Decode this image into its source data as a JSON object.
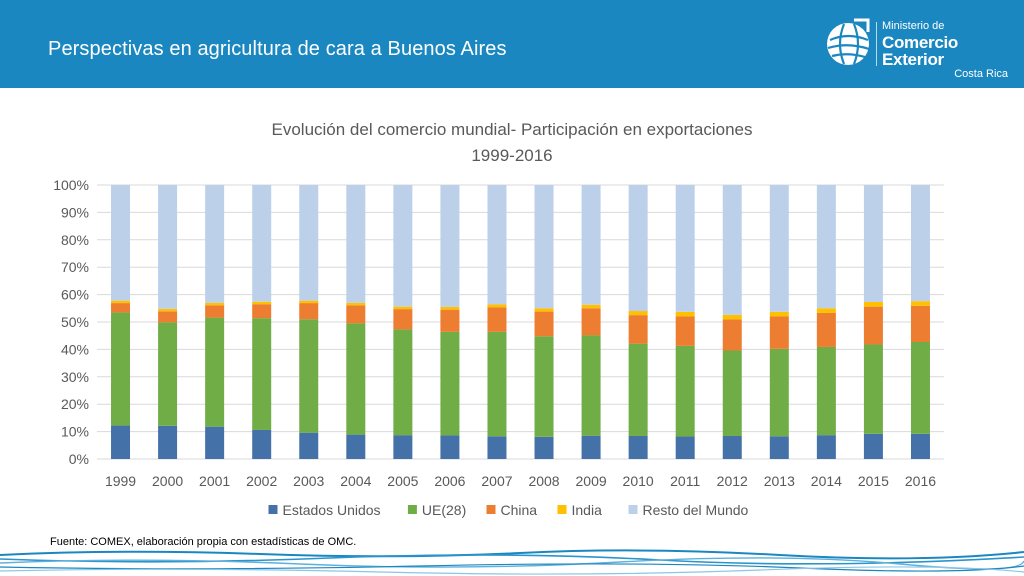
{
  "header": {
    "title": "Perspectivas en agricultura de cara a Buenos Aires",
    "background_color": "#1b87c0",
    "logo": {
      "line1": "Ministerio de",
      "line2": "Comercio Exterior",
      "line3": "Costa Rica",
      "icon": "globe-icon"
    }
  },
  "footer": {
    "source": "Fuente: COMEX, elaboración propia con estadísticas de OMC."
  },
  "chart_data": {
    "type": "bar",
    "stacked": true,
    "percent_stacked": true,
    "title": "Evolución del comercio mundial- Participación en exportaciones",
    "subtitle": "1999-2016",
    "xlabel": "",
    "ylabel": "",
    "ylim": [
      0,
      1
    ],
    "yticks": [
      "0%",
      "10%",
      "20%",
      "30%",
      "40%",
      "50%",
      "60%",
      "70%",
      "80%",
      "90%",
      "100%"
    ],
    "grid": true,
    "legend_position": "bottom",
    "categories": [
      "1999",
      "2000",
      "2001",
      "2002",
      "2003",
      "2004",
      "2005",
      "2006",
      "2007",
      "2008",
      "2009",
      "2010",
      "2011",
      "2012",
      "2013",
      "2014",
      "2015",
      "2016"
    ],
    "series": [
      {
        "name": "Estados Unidos",
        "color": "#4472a8",
        "values": [
          0.122,
          0.121,
          0.118,
          0.106,
          0.096,
          0.089,
          0.087,
          0.086,
          0.083,
          0.081,
          0.085,
          0.084,
          0.082,
          0.084,
          0.083,
          0.087,
          0.092,
          0.092
        ]
      },
      {
        "name": "UE(28)",
        "color": "#70ad47",
        "values": [
          0.413,
          0.378,
          0.398,
          0.408,
          0.414,
          0.406,
          0.386,
          0.378,
          0.381,
          0.367,
          0.366,
          0.337,
          0.331,
          0.312,
          0.319,
          0.322,
          0.326,
          0.335
        ]
      },
      {
        "name": "China",
        "color": "#ed7d31",
        "values": [
          0.034,
          0.04,
          0.045,
          0.051,
          0.059,
          0.066,
          0.074,
          0.081,
          0.089,
          0.09,
          0.099,
          0.104,
          0.107,
          0.113,
          0.118,
          0.124,
          0.138,
          0.132
        ]
      },
      {
        "name": "India",
        "color": "#ffc000",
        "values": [
          0.009,
          0.009,
          0.009,
          0.009,
          0.009,
          0.009,
          0.009,
          0.01,
          0.011,
          0.012,
          0.013,
          0.015,
          0.017,
          0.017,
          0.017,
          0.017,
          0.017,
          0.017
        ]
      },
      {
        "name": "Resto del Mundo",
        "color": "#bdd0ea",
        "values": [
          0.422,
          0.452,
          0.43,
          0.426,
          0.422,
          0.43,
          0.444,
          0.445,
          0.436,
          0.45,
          0.437,
          0.46,
          0.463,
          0.474,
          0.463,
          0.45,
          0.427,
          0.424
        ]
      }
    ]
  }
}
